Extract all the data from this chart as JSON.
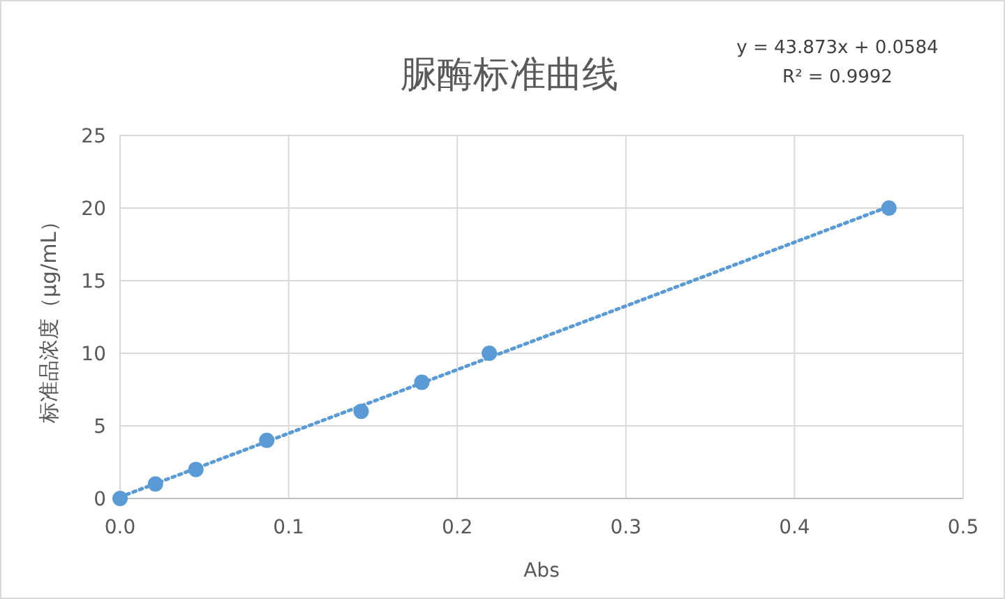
{
  "chart_data": {
    "type": "scatter",
    "title": "脲酶标准曲线",
    "xlabel": "Abs",
    "ylabel": "标准品浓度（μg/mL）",
    "annotations": [
      "y = 43.873x + 0.0584",
      "R² = 0.9992"
    ],
    "marker": "circle",
    "grid": true,
    "xlim": [
      0,
      0.5
    ],
    "ylim": [
      0,
      25
    ],
    "xticks": [
      {
        "value": 0,
        "label": "0.0"
      },
      0.1,
      0.2,
      0.3,
      0.4,
      0.5
    ],
    "yticks": [
      0,
      5,
      10,
      15,
      20,
      25
    ],
    "series": [
      {
        "type": "scatter",
        "color": "#5b9bd5",
        "x": [
          0,
          0.021,
          0.045,
          0.087,
          0.143,
          0.179,
          0.219,
          0.456
        ],
        "values": [
          0,
          1,
          2,
          4,
          6,
          8,
          10,
          20
        ]
      },
      {
        "type": "line",
        "color": "#5b9bd5",
        "line_style": "dotted",
        "marker": "none",
        "x": [
          0,
          0.456
        ],
        "values": [
          0.1,
          20.1
        ]
      }
    ]
  }
}
